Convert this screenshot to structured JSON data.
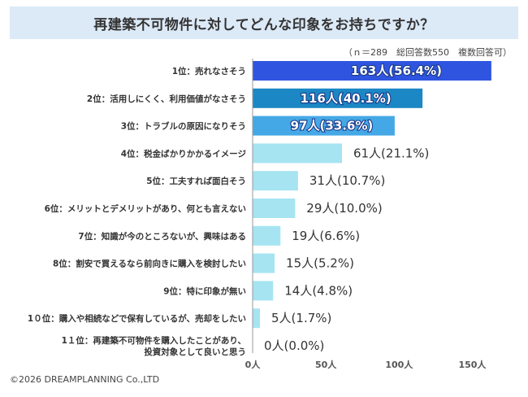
{
  "header": {
    "title": "再建築不可物件に対してどんな印象をお持ちですか？",
    "note": "（ｎ＝289　総回答数550　複数回答可）"
  },
  "footer": {
    "copyright": "©2026 DREAMPLANNING Co.,LTD"
  },
  "chart_data": {
    "type": "bar",
    "orientation": "horizontal",
    "categories": [
      [
        "1位：売れなさそう"
      ],
      [
        "2位：活用しにくく、利用価値がなさそう"
      ],
      [
        "3位：トラブルの原因になりそう"
      ],
      [
        "4位：税金ばかりかかるイメージ"
      ],
      [
        "5位：工夫すれば面白そう"
      ],
      [
        "6位：メリットとデメリットがあり、何とも言えない"
      ],
      [
        "7位：知識が今のところないが、興味はある"
      ],
      [
        "8位：割安で買えるなら前向きに購入を検討したい"
      ],
      [
        "9位：特に印象が無い"
      ],
      [
        "1０位：購入や相続などで保有しているが、売却をしたい"
      ],
      [
        "1１位：再建築不可物件を購入したことがあり、",
        "投資対象として良いと思う"
      ]
    ],
    "values": [
      163,
      116,
      97,
      61,
      31,
      29,
      19,
      15,
      14,
      5,
      0
    ],
    "value_labels": [
      "163人(56.4%)",
      "116人(40.1%)",
      "97人(33.6%)",
      "61人(21.1%)",
      "31人(10.7%)",
      "29人(10.0%)",
      "19人(6.6%)",
      "15人(5.2%)",
      "14人(4.8%)",
      "5人(1.7%)",
      "0人(0.0%)"
    ],
    "bar_colors": [
      "#2f55e0",
      "#1b87c4",
      "#45a8e6",
      "#a6e4f2",
      "#a6e4f2",
      "#a6e4f2",
      "#a6e4f2",
      "#a6e4f2",
      "#a6e4f2",
      "#a6e4f2",
      "#a6e4f2"
    ],
    "label_inside": [
      true,
      true,
      true,
      false,
      false,
      false,
      false,
      false,
      false,
      false,
      false
    ],
    "xlim": [
      0,
      165
    ],
    "xticks": [
      0,
      50,
      100,
      150
    ],
    "xtick_labels": [
      "0人",
      "50人",
      "100人",
      "150人"
    ],
    "grid": false
  }
}
